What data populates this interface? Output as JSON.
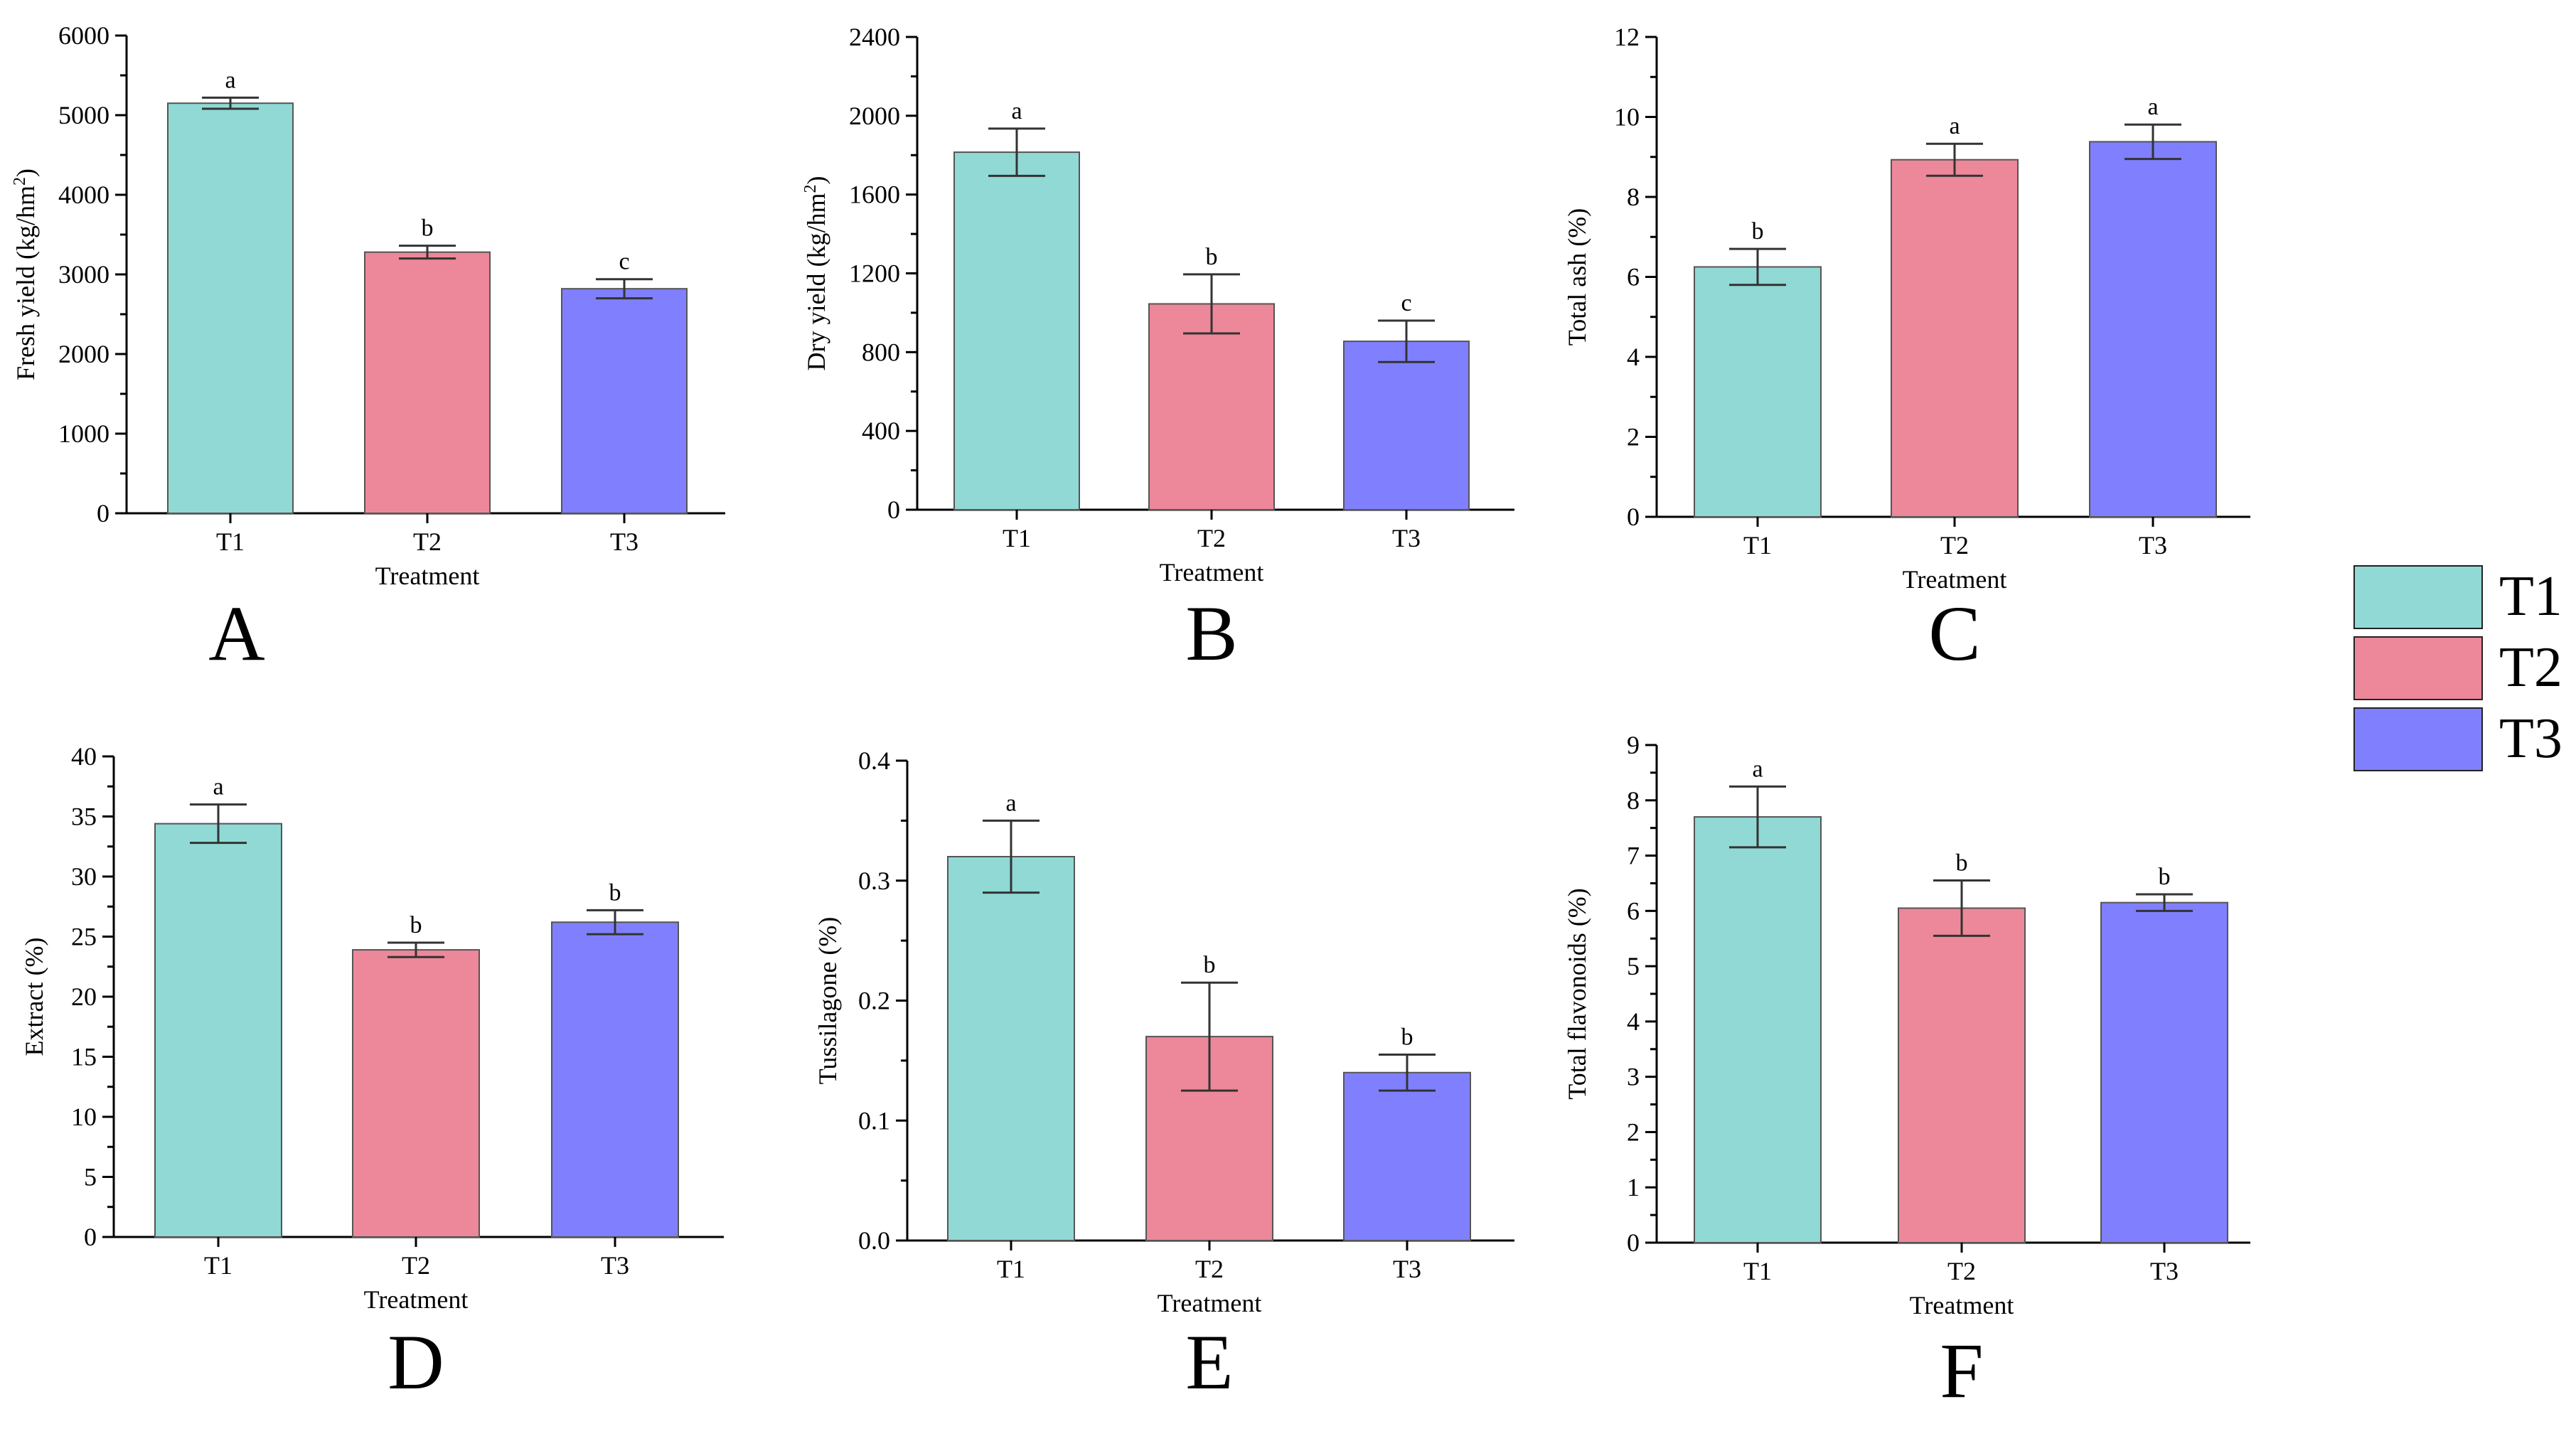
{
  "colors": {
    "T1": "#90d9d4",
    "T2": "#ec8899",
    "T3": "#8080ff",
    "axis": "#000000",
    "errorbar": "#333333",
    "barstroke": "#555555"
  },
  "legend": [
    {
      "label": "T1",
      "color": "#90d9d4"
    },
    {
      "label": "T2",
      "color": "#ec8899"
    },
    {
      "label": "T3",
      "color": "#8080ff"
    }
  ],
  "chart_data": [
    {
      "panel": "A",
      "type": "bar",
      "xlabel": "Treatment",
      "ylabel_main": "Fresh yield (kg/hm",
      "ylabel_sup": "2",
      "ylabel_end": ")",
      "categories": [
        "T1",
        "T2",
        "T3"
      ],
      "values": [
        5150,
        3280,
        2820
      ],
      "errors": [
        70,
        80,
        120
      ],
      "letters": [
        "a",
        "b",
        "c"
      ],
      "ylim": [
        0,
        6000
      ],
      "yticks": [
        "0",
        "1000",
        "2000",
        "3000",
        "4000",
        "5000",
        "6000"
      ]
    },
    {
      "panel": "B",
      "type": "bar",
      "xlabel": "Treatment",
      "ylabel_main": "Dry yield (kg/hm",
      "ylabel_sup": "2",
      "ylabel_end": ")",
      "categories": [
        "T1",
        "T2",
        "T3"
      ],
      "values": [
        1815,
        1045,
        855
      ],
      "errors": [
        120,
        150,
        105
      ],
      "letters": [
        "a",
        "b",
        "c"
      ],
      "ylim": [
        0,
        2400
      ],
      "yticks": [
        "0",
        "400",
        "800",
        "1200",
        "1600",
        "2000",
        "2400"
      ]
    },
    {
      "panel": "C",
      "type": "bar",
      "xlabel": "Treatment",
      "ylabel_main": "Total ash (%)",
      "categories": [
        "T1",
        "T2",
        "T3"
      ],
      "values": [
        6.25,
        8.93,
        9.38
      ],
      "errors": [
        0.45,
        0.4,
        0.43
      ],
      "letters": [
        "b",
        "a",
        "a"
      ],
      "ylim": [
        0,
        12
      ],
      "yticks": [
        "0",
        "2",
        "4",
        "6",
        "8",
        "10",
        "12"
      ]
    },
    {
      "panel": "D",
      "type": "bar",
      "xlabel": "Treatment",
      "ylabel_main": "Extract (%)",
      "categories": [
        "T1",
        "T2",
        "T3"
      ],
      "values": [
        34.4,
        23.9,
        26.2
      ],
      "errors": [
        1.6,
        0.6,
        1.0
      ],
      "letters": [
        "a",
        "b",
        "b"
      ],
      "ylim": [
        0,
        40
      ],
      "yticks": [
        "0",
        "5",
        "10",
        "15",
        "20",
        "25",
        "30",
        "35",
        "40"
      ]
    },
    {
      "panel": "E",
      "type": "bar",
      "xlabel": "Treatment",
      "ylabel_main": "Tussilagone (%)",
      "categories": [
        "T1",
        "T2",
        "T3"
      ],
      "values": [
        0.32,
        0.17,
        0.14
      ],
      "errors": [
        0.03,
        0.045,
        0.015
      ],
      "letters": [
        "a",
        "b",
        "b"
      ],
      "ylim": [
        0,
        0.4
      ],
      "yticks": [
        "0.0",
        "0.1",
        "0.2",
        "0.3",
        "0.4"
      ]
    },
    {
      "panel": "F",
      "type": "bar",
      "xlabel": "Treatment",
      "ylabel_main": "Total flavonoids (%)",
      "categories": [
        "T1",
        "T2",
        "T3"
      ],
      "values": [
        7.7,
        6.05,
        6.15
      ],
      "errors": [
        0.55,
        0.5,
        0.15
      ],
      "letters": [
        "a",
        "b",
        "b"
      ],
      "ylim": [
        0,
        9
      ],
      "yticks": [
        "0",
        "1",
        "2",
        "3",
        "4",
        "5",
        "6",
        "7",
        "8",
        "9"
      ]
    }
  ]
}
